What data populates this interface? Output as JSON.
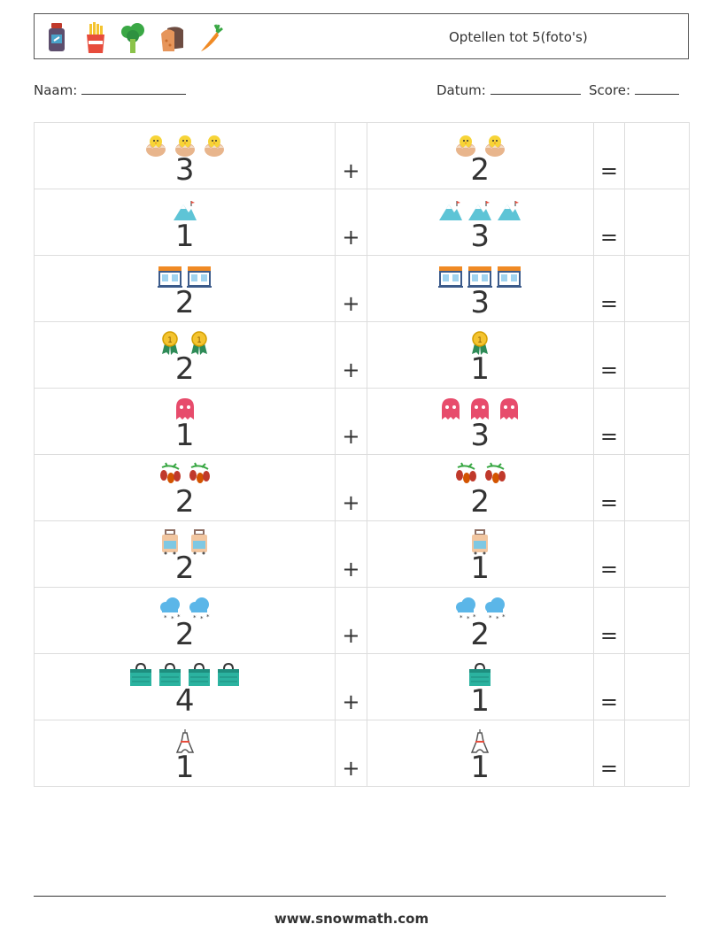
{
  "header": {
    "title": "Optellen tot 5(foto's)",
    "icons": [
      "jam-jar-icon",
      "french-fries-icon",
      "broccoli-icon",
      "bread-icon",
      "carrot-icon"
    ]
  },
  "fields": {
    "name_label": "Naam:",
    "date_label": "Datum:",
    "score_label": "Score:"
  },
  "symbols": {
    "plus": "+",
    "equals": "="
  },
  "problems": [
    {
      "a": {
        "count": "3",
        "icon": "hatching-chick-icon"
      },
      "b": {
        "count": "2",
        "icon": "hatching-chick-icon"
      }
    },
    {
      "a": {
        "count": "1",
        "icon": "mountain-icon"
      },
      "b": {
        "count": "3",
        "icon": "mountain-icon"
      }
    },
    {
      "a": {
        "count": "2",
        "icon": "shop-window-icon"
      },
      "b": {
        "count": "3",
        "icon": "shop-window-icon"
      }
    },
    {
      "a": {
        "count": "2",
        "icon": "medal-icon"
      },
      "b": {
        "count": "1",
        "icon": "medal-icon"
      }
    },
    {
      "a": {
        "count": "1",
        "icon": "ghost-icon"
      },
      "b": {
        "count": "3",
        "icon": "ghost-icon"
      }
    },
    {
      "a": {
        "count": "2",
        "icon": "goji-berry-icon"
      },
      "b": {
        "count": "2",
        "icon": "goji-berry-icon"
      }
    },
    {
      "a": {
        "count": "2",
        "icon": "luggage-icon"
      },
      "b": {
        "count": "1",
        "icon": "luggage-icon"
      }
    },
    {
      "a": {
        "count": "2",
        "icon": "snow-cloud-icon"
      },
      "b": {
        "count": "2",
        "icon": "snow-cloud-icon"
      }
    },
    {
      "a": {
        "count": "4",
        "icon": "shopping-bag-icon"
      },
      "b": {
        "count": "1",
        "icon": "shopping-bag-icon"
      }
    },
    {
      "a": {
        "count": "1",
        "icon": "eiffel-tower-icon"
      },
      "b": {
        "count": "1",
        "icon": "eiffel-tower-icon"
      }
    }
  ],
  "footer": {
    "website": "www.snowmath.com"
  }
}
